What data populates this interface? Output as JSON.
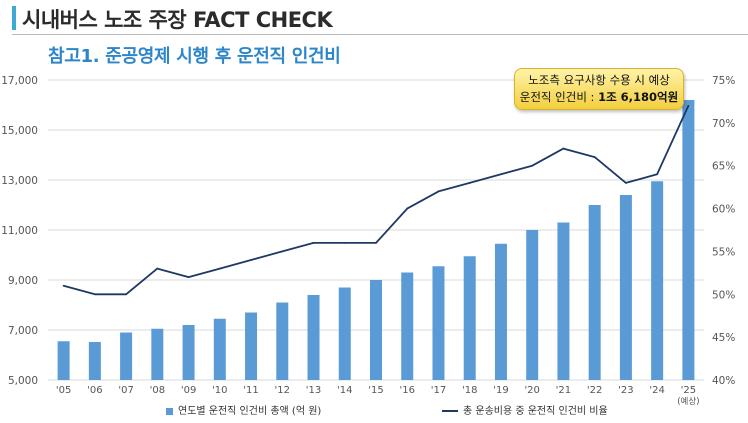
{
  "header": {
    "title": "시내버스 노조 주장 FACT CHECK"
  },
  "chart_data": {
    "type": "bar",
    "title": "참고1. 준공영제 시행 후 운전직 인건비",
    "categories": [
      "'05",
      "'06",
      "'07",
      "'08",
      "'09",
      "'10",
      "'11",
      "'12",
      "'13",
      "'14",
      "'15",
      "'16",
      "'17",
      "'18",
      "'19",
      "'20",
      "'21",
      "'22",
      "'23",
      "'24",
      "'25"
    ],
    "last_category_note": "(예상)",
    "series": [
      {
        "name": "연도별 운전직 인건비 총액 (억 원)",
        "type": "bar",
        "axis": "left",
        "color": "#5b9bd5",
        "values": [
          6550,
          6520,
          6900,
          7050,
          7200,
          7450,
          7700,
          8100,
          8400,
          8700,
          9000,
          9300,
          9550,
          9950,
          10450,
          11000,
          11300,
          12000,
          12400,
          12950,
          16200
        ]
      },
      {
        "name": "총 운송비용 중 운전직 인건비 비율",
        "type": "line",
        "axis": "right",
        "color": "#1f3864",
        "values": [
          51,
          50,
          50,
          53,
          52,
          53,
          54,
          55,
          56,
          56,
          56,
          60,
          62,
          63,
          64,
          65,
          67,
          66,
          63,
          64,
          72
        ]
      }
    ],
    "y_left": {
      "ylim": [
        5000,
        17000
      ],
      "ticks": [
        "5,000",
        "7,000",
        "9,000",
        "11,000",
        "13,000",
        "15,000",
        "17,000"
      ]
    },
    "y_right": {
      "ylim": [
        40,
        75
      ],
      "ticks": [
        "40%",
        "45%",
        "50%",
        "55%",
        "60%",
        "65%",
        "70%",
        "75%"
      ]
    },
    "grid": true,
    "legend_placement": "bottom",
    "annotation": {
      "line1": "노조측 요구사항 수용 시 예상",
      "line2_prefix": "운전직 인건비 : ",
      "line2_value": "1조 6,180억원"
    }
  }
}
